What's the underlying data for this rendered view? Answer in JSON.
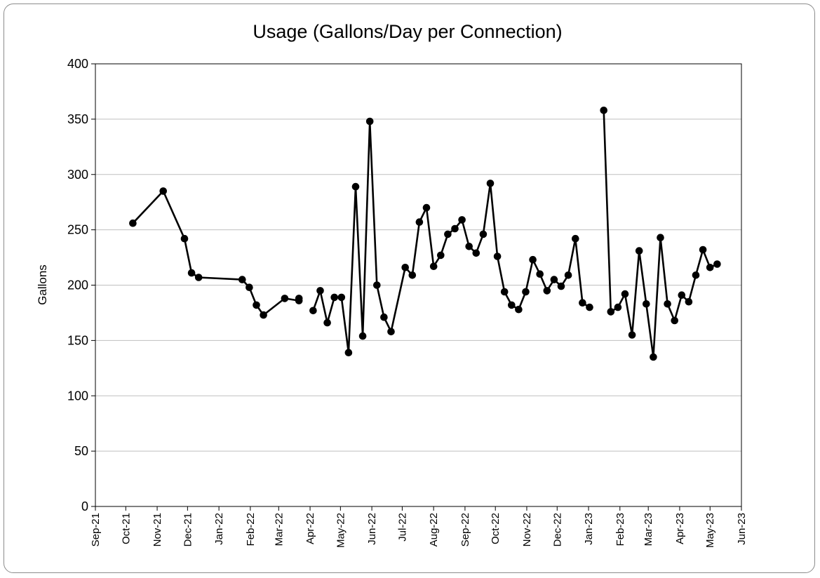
{
  "chart_data": {
    "type": "line",
    "title": "Usage (Gallons/Day per Connection)",
    "xlabel": "",
    "ylabel": "Gallons",
    "ylim": [
      0,
      400
    ],
    "yticks": [
      0,
      50,
      100,
      150,
      200,
      250,
      300,
      350,
      400
    ],
    "xlim": [
      "2021-09-01",
      "2023-06-01"
    ],
    "xticks": [
      {
        "date": "2021-09-01",
        "label": "Sep-21"
      },
      {
        "date": "2021-10-01",
        "label": "Oct-21"
      },
      {
        "date": "2021-11-01",
        "label": "Nov-21"
      },
      {
        "date": "2021-12-01",
        "label": "Dec-21"
      },
      {
        "date": "2022-01-01",
        "label": "Jan-22"
      },
      {
        "date": "2022-02-01",
        "label": "Feb-22"
      },
      {
        "date": "2022-03-01",
        "label": "Mar-22"
      },
      {
        "date": "2022-04-01",
        "label": "Apr-22"
      },
      {
        "date": "2022-05-01",
        "label": "May-22"
      },
      {
        "date": "2022-06-01",
        "label": "Jun-22"
      },
      {
        "date": "2022-07-01",
        "label": "Jul-22"
      },
      {
        "date": "2022-08-01",
        "label": "Aug-22"
      },
      {
        "date": "2022-09-01",
        "label": "Sep-22"
      },
      {
        "date": "2022-10-01",
        "label": "Oct-22"
      },
      {
        "date": "2022-11-01",
        "label": "Nov-22"
      },
      {
        "date": "2022-12-01",
        "label": "Dec-22"
      },
      {
        "date": "2023-01-01",
        "label": "Jan-23"
      },
      {
        "date": "2023-02-01",
        "label": "Feb-23"
      },
      {
        "date": "2023-03-01",
        "label": "Mar-23"
      },
      {
        "date": "2023-04-01",
        "label": "Apr-23"
      },
      {
        "date": "2023-05-01",
        "label": "May-23"
      },
      {
        "date": "2023-06-01",
        "label": "Jun-23"
      }
    ],
    "grid": {
      "horizontal": true,
      "vertical": false
    },
    "legend": "none",
    "line_color": "#000000",
    "series": [
      {
        "segments": [
          [
            {
              "x": "2021-10-08",
              "y": 256
            },
            {
              "x": "2021-11-07",
              "y": 285
            },
            {
              "x": "2021-11-28",
              "y": 242
            },
            {
              "x": "2021-12-05",
              "y": 211
            },
            {
              "x": "2021-12-12",
              "y": 207
            },
            {
              "x": "2022-01-24",
              "y": 205
            },
            {
              "x": "2022-01-31",
              "y": 198
            },
            {
              "x": "2022-02-07",
              "y": 182
            },
            {
              "x": "2022-02-14",
              "y": 173
            },
            {
              "x": "2022-03-07",
              "y": 188
            },
            {
              "x": "2022-03-21",
              "y": 186
            }
          ],
          [
            {
              "x": "2022-03-21",
              "y": 188
            }
          ],
          [
            {
              "x": "2022-04-04",
              "y": 177
            },
            {
              "x": "2022-04-11",
              "y": 195
            },
            {
              "x": "2022-04-18",
              "y": 166
            },
            {
              "x": "2022-04-25",
              "y": 189
            },
            {
              "x": "2022-05-02",
              "y": 189
            },
            {
              "x": "2022-05-09",
              "y": 139
            },
            {
              "x": "2022-05-16",
              "y": 289
            },
            {
              "x": "2022-05-23",
              "y": 154
            },
            {
              "x": "2022-05-30",
              "y": 348
            },
            {
              "x": "2022-06-06",
              "y": 200
            },
            {
              "x": "2022-06-13",
              "y": 171
            },
            {
              "x": "2022-06-20",
              "y": 158
            },
            {
              "x": "2022-07-04",
              "y": 216
            },
            {
              "x": "2022-07-11",
              "y": 209
            },
            {
              "x": "2022-07-18",
              "y": 257
            },
            {
              "x": "2022-07-25",
              "y": 270
            },
            {
              "x": "2022-08-01",
              "y": 217
            },
            {
              "x": "2022-08-08",
              "y": 227
            },
            {
              "x": "2022-08-15",
              "y": 246
            },
            {
              "x": "2022-08-22",
              "y": 251
            },
            {
              "x": "2022-08-29",
              "y": 259
            },
            {
              "x": "2022-09-05",
              "y": 235
            },
            {
              "x": "2022-09-12",
              "y": 229
            },
            {
              "x": "2022-09-19",
              "y": 246
            },
            {
              "x": "2022-09-26",
              "y": 292
            },
            {
              "x": "2022-10-03",
              "y": 226
            },
            {
              "x": "2022-10-10",
              "y": 194
            },
            {
              "x": "2022-10-17",
              "y": 182
            },
            {
              "x": "2022-10-24",
              "y": 178
            },
            {
              "x": "2022-10-31",
              "y": 194
            },
            {
              "x": "2022-11-07",
              "y": 223
            },
            {
              "x": "2022-11-14",
              "y": 210
            },
            {
              "x": "2022-11-21",
              "y": 195
            },
            {
              "x": "2022-11-28",
              "y": 205
            },
            {
              "x": "2022-12-05",
              "y": 199
            },
            {
              "x": "2022-12-12",
              "y": 209
            },
            {
              "x": "2022-12-19",
              "y": 242
            },
            {
              "x": "2022-12-26",
              "y": 184
            },
            {
              "x": "2023-01-02",
              "y": 180
            }
          ],
          [
            {
              "x": "2023-01-16",
              "y": 358
            },
            {
              "x": "2023-01-23",
              "y": 176
            },
            {
              "x": "2023-01-30",
              "y": 180
            },
            {
              "x": "2023-02-06",
              "y": 192
            },
            {
              "x": "2023-02-13",
              "y": 155
            },
            {
              "x": "2023-02-20",
              "y": 231
            },
            {
              "x": "2023-02-27",
              "y": 183
            },
            {
              "x": "2023-03-06",
              "y": 135
            },
            {
              "x": "2023-03-13",
              "y": 243
            },
            {
              "x": "2023-03-20",
              "y": 183
            },
            {
              "x": "2023-03-27",
              "y": 168
            },
            {
              "x": "2023-04-03",
              "y": 191
            },
            {
              "x": "2023-04-10",
              "y": 185
            },
            {
              "x": "2023-04-17",
              "y": 209
            },
            {
              "x": "2023-04-24",
              "y": 232
            },
            {
              "x": "2023-05-01",
              "y": 216
            },
            {
              "x": "2023-05-08",
              "y": 219
            }
          ]
        ]
      }
    ]
  }
}
